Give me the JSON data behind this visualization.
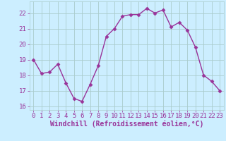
{
  "x": [
    0,
    1,
    2,
    3,
    4,
    5,
    6,
    7,
    8,
    9,
    10,
    11,
    12,
    13,
    14,
    15,
    16,
    17,
    18,
    19,
    20,
    21,
    22,
    23
  ],
  "y": [
    19.0,
    18.1,
    18.2,
    18.7,
    17.5,
    16.5,
    16.3,
    17.4,
    18.6,
    20.5,
    21.0,
    21.8,
    21.9,
    21.9,
    22.3,
    22.0,
    22.2,
    21.1,
    21.4,
    20.9,
    19.8,
    18.0,
    17.6,
    17.0
  ],
  "line_color": "#993399",
  "marker": "D",
  "markersize": 2.5,
  "linewidth": 1.0,
  "bg_color": "#cceeff",
  "grid_color": "#aacccc",
  "xlabel": "Windchill (Refroidissement éolien,°C)",
  "xlabel_color": "#993399",
  "tick_color": "#993399",
  "label_color": "#993399",
  "xlim": [
    -0.5,
    23.5
  ],
  "ylim": [
    15.75,
    22.75
  ],
  "yticks": [
    16,
    17,
    18,
    19,
    20,
    21,
    22
  ],
  "xticks": [
    0,
    1,
    2,
    3,
    4,
    5,
    6,
    7,
    8,
    9,
    10,
    11,
    12,
    13,
    14,
    15,
    16,
    17,
    18,
    19,
    20,
    21,
    22,
    23
  ],
  "xtick_labels": [
    "0",
    "1",
    "2",
    "3",
    "4",
    "5",
    "6",
    "7",
    "8",
    "9",
    "10",
    "11",
    "12",
    "13",
    "14",
    "15",
    "16",
    "17",
    "18",
    "19",
    "20",
    "21",
    "22",
    "23"
  ],
  "font_size": 6.5,
  "xlabel_fontsize": 7.0
}
